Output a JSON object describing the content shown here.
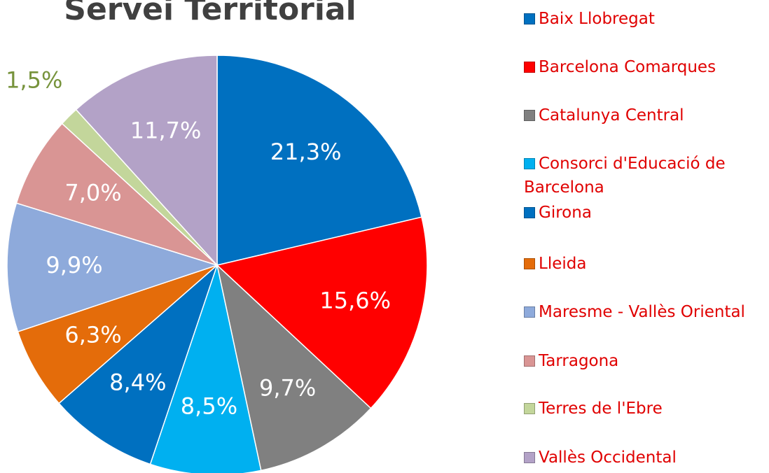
{
  "chart_data": {
    "type": "pie",
    "title": "Servei Territorial",
    "categories": [
      "Baix Llobregat",
      "Barcelona Comarques",
      "Catalunya Central",
      "Consorci d'Educació de Barcelona",
      "Girona",
      "Lleida",
      "Maresme - Vallès Oriental",
      "Tarragona",
      "Terres de l'Ebre",
      "Vallès Occidental"
    ],
    "values": [
      21.3,
      15.6,
      9.7,
      8.5,
      8.4,
      6.3,
      9.9,
      7.0,
      1.5,
      11.7
    ],
    "value_labels": [
      "21,3%",
      "15,6%",
      "9,7%",
      "8,5%",
      "8,4%",
      "6,3%",
      "9,9%",
      "7,0%",
      "1,5%",
      "11,7%"
    ],
    "colors": [
      "#0070c0",
      "#ff0000",
      "#808080",
      "#00b0f0",
      "#0070c0",
      "#e46c0a",
      "#8eaadb",
      "#d99594",
      "#c3d69b",
      "#b3a2c7"
    ],
    "legend": "right"
  }
}
